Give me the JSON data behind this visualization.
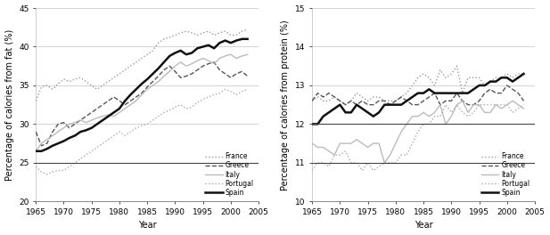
{
  "years": [
    1965,
    1966,
    1967,
    1968,
    1969,
    1970,
    1971,
    1972,
    1973,
    1974,
    1975,
    1976,
    1977,
    1978,
    1979,
    1980,
    1981,
    1982,
    1983,
    1984,
    1985,
    1986,
    1987,
    1988,
    1989,
    1990,
    1991,
    1992,
    1993,
    1994,
    1995,
    1996,
    1997,
    1998,
    1999,
    2000,
    2001,
    2002,
    2003
  ],
  "fat": {
    "France": [
      33.0,
      34.8,
      35.0,
      34.5,
      35.2,
      35.8,
      35.5,
      35.8,
      36.0,
      35.5,
      35.0,
      34.5,
      35.0,
      35.5,
      36.0,
      36.5,
      37.0,
      37.5,
      38.0,
      38.5,
      39.0,
      39.5,
      40.5,
      41.0,
      41.2,
      41.5,
      41.8,
      42.0,
      41.8,
      41.5,
      41.8,
      42.0,
      41.5,
      41.8,
      42.0,
      41.5,
      41.5,
      42.0,
      42.2
    ],
    "Greece": [
      29.0,
      27.2,
      27.5,
      29.0,
      30.0,
      30.2,
      29.5,
      30.0,
      30.5,
      31.0,
      31.5,
      32.0,
      32.5,
      33.0,
      33.5,
      33.0,
      32.5,
      33.0,
      33.5,
      34.0,
      34.8,
      35.5,
      36.2,
      37.0,
      37.5,
      36.8,
      36.0,
      36.2,
      36.5,
      37.0,
      37.5,
      37.8,
      38.0,
      37.0,
      36.5,
      36.0,
      36.5,
      36.8,
      36.2
    ],
    "Italy": [
      26.5,
      27.5,
      28.0,
      28.5,
      29.0,
      29.5,
      30.0,
      30.2,
      30.5,
      30.2,
      30.5,
      30.8,
      31.0,
      31.2,
      31.0,
      31.5,
      32.0,
      32.5,
      33.0,
      33.8,
      34.5,
      35.0,
      35.5,
      36.2,
      36.8,
      37.5,
      38.0,
      37.5,
      37.8,
      38.2,
      38.5,
      38.2,
      37.8,
      38.5,
      38.8,
      39.0,
      38.5,
      38.8,
      39.0
    ],
    "Portugal": [
      24.5,
      23.8,
      23.5,
      23.8,
      24.0,
      24.0,
      24.5,
      25.0,
      25.5,
      26.0,
      26.5,
      27.0,
      27.5,
      28.0,
      28.5,
      29.0,
      28.5,
      29.0,
      29.5,
      29.8,
      30.0,
      30.5,
      31.0,
      31.5,
      31.8,
      32.2,
      32.5,
      32.0,
      32.2,
      32.8,
      33.2,
      33.5,
      33.8,
      34.0,
      34.5,
      34.2,
      33.8,
      34.2,
      34.5
    ],
    "Spain": [
      26.5,
      26.5,
      26.8,
      27.2,
      27.5,
      27.8,
      28.2,
      28.5,
      29.0,
      29.2,
      29.5,
      30.0,
      30.5,
      31.0,
      31.5,
      32.0,
      33.0,
      33.8,
      34.5,
      35.2,
      35.8,
      36.5,
      37.2,
      38.0,
      38.8,
      39.2,
      39.5,
      39.0,
      39.2,
      39.8,
      40.0,
      40.2,
      39.8,
      40.5,
      40.8,
      40.5,
      40.8,
      41.0,
      41.0
    ]
  },
  "protein": {
    "France": [
      12.6,
      12.7,
      12.6,
      12.6,
      12.7,
      12.6,
      12.5,
      12.6,
      12.8,
      12.7,
      12.6,
      12.7,
      12.7,
      12.6,
      12.6,
      12.6,
      12.7,
      12.8,
      13.0,
      13.2,
      13.3,
      13.2,
      13.0,
      13.4,
      13.2,
      13.3,
      13.5,
      12.8,
      13.2,
      13.2,
      13.2,
      13.0,
      13.1,
      13.2,
      13.2,
      13.3,
      13.2,
      13.3,
      13.3
    ],
    "Greece": [
      12.6,
      12.8,
      12.7,
      12.8,
      12.7,
      12.6,
      12.5,
      12.6,
      12.5,
      12.6,
      12.5,
      12.5,
      12.6,
      12.6,
      12.5,
      12.6,
      12.7,
      12.6,
      12.5,
      12.5,
      12.6,
      12.7,
      12.8,
      12.5,
      12.6,
      12.6,
      12.8,
      12.6,
      12.5,
      12.5,
      12.6,
      12.8,
      12.9,
      12.8,
      12.8,
      13.0,
      12.9,
      12.8,
      12.6
    ],
    "Italy": [
      11.5,
      11.4,
      11.4,
      11.3,
      11.2,
      11.5,
      11.5,
      11.5,
      11.6,
      11.5,
      11.4,
      11.5,
      11.5,
      11.0,
      11.2,
      11.5,
      11.8,
      12.0,
      12.2,
      12.2,
      12.3,
      12.2,
      12.3,
      12.5,
      12.0,
      12.2,
      12.5,
      12.6,
      12.3,
      12.5,
      12.5,
      12.3,
      12.3,
      12.5,
      12.4,
      12.5,
      12.6,
      12.5,
      12.4
    ],
    "Portugal": [
      10.8,
      11.0,
      11.0,
      10.9,
      11.2,
      11.2,
      11.3,
      11.0,
      11.0,
      10.8,
      11.0,
      10.8,
      10.9,
      11.0,
      11.0,
      11.0,
      11.2,
      11.2,
      11.5,
      11.8,
      12.0,
      12.0,
      12.2,
      12.2,
      12.5,
      12.3,
      12.5,
      12.3,
      12.2,
      12.3,
      12.5,
      12.5,
      12.5,
      12.5,
      12.5,
      12.5,
      12.3,
      12.4,
      12.5
    ],
    "Spain": [
      12.0,
      12.0,
      12.2,
      12.3,
      12.4,
      12.5,
      12.3,
      12.3,
      12.5,
      12.4,
      12.3,
      12.2,
      12.3,
      12.5,
      12.5,
      12.5,
      12.5,
      12.6,
      12.7,
      12.8,
      12.8,
      12.9,
      12.8,
      12.8,
      12.8,
      12.8,
      12.8,
      12.8,
      12.8,
      12.9,
      13.0,
      13.0,
      13.1,
      13.1,
      13.2,
      13.2,
      13.1,
      13.2,
      13.3
    ]
  },
  "styles": {
    "France": {
      "color": "#999999",
      "linestyle": "dotted",
      "linewidth": 1.0,
      "dashes": []
    },
    "Greece": {
      "color": "#555555",
      "linestyle": "dashed",
      "linewidth": 1.0,
      "dashes": []
    },
    "Italy": {
      "color": "#bbbbbb",
      "linestyle": "solid",
      "linewidth": 1.0,
      "dashes": []
    },
    "Portugal": {
      "color": "#aaaaaa",
      "linestyle": "dotted",
      "linewidth": 1.0,
      "dashes": []
    },
    "Spain": {
      "color": "#111111",
      "linestyle": "solid",
      "linewidth": 1.8,
      "dashes": []
    }
  },
  "fat_ylim": [
    20,
    45
  ],
  "fat_yticks": [
    20,
    25,
    30,
    35,
    40,
    45
  ],
  "protein_ylim": [
    10,
    15
  ],
  "protein_yticks": [
    10,
    11,
    12,
    13,
    14,
    15
  ],
  "xlim": [
    1965,
    2005
  ],
  "xticks": [
    1965,
    1970,
    1975,
    1980,
    1985,
    1990,
    1995,
    2000,
    2005
  ],
  "xlabel": "Year",
  "fat_ylabel": "Percentage of calories from fat (%)",
  "protein_ylabel": "Percentage of calories from protein (%)",
  "legend_countries": [
    "France",
    "Greece",
    "Italy",
    "Portugal",
    "Spain"
  ],
  "hline_fat": [
    25
  ],
  "hline_protein": [
    11,
    12
  ],
  "hline_color": "#444444",
  "hline_lw": 0.8
}
